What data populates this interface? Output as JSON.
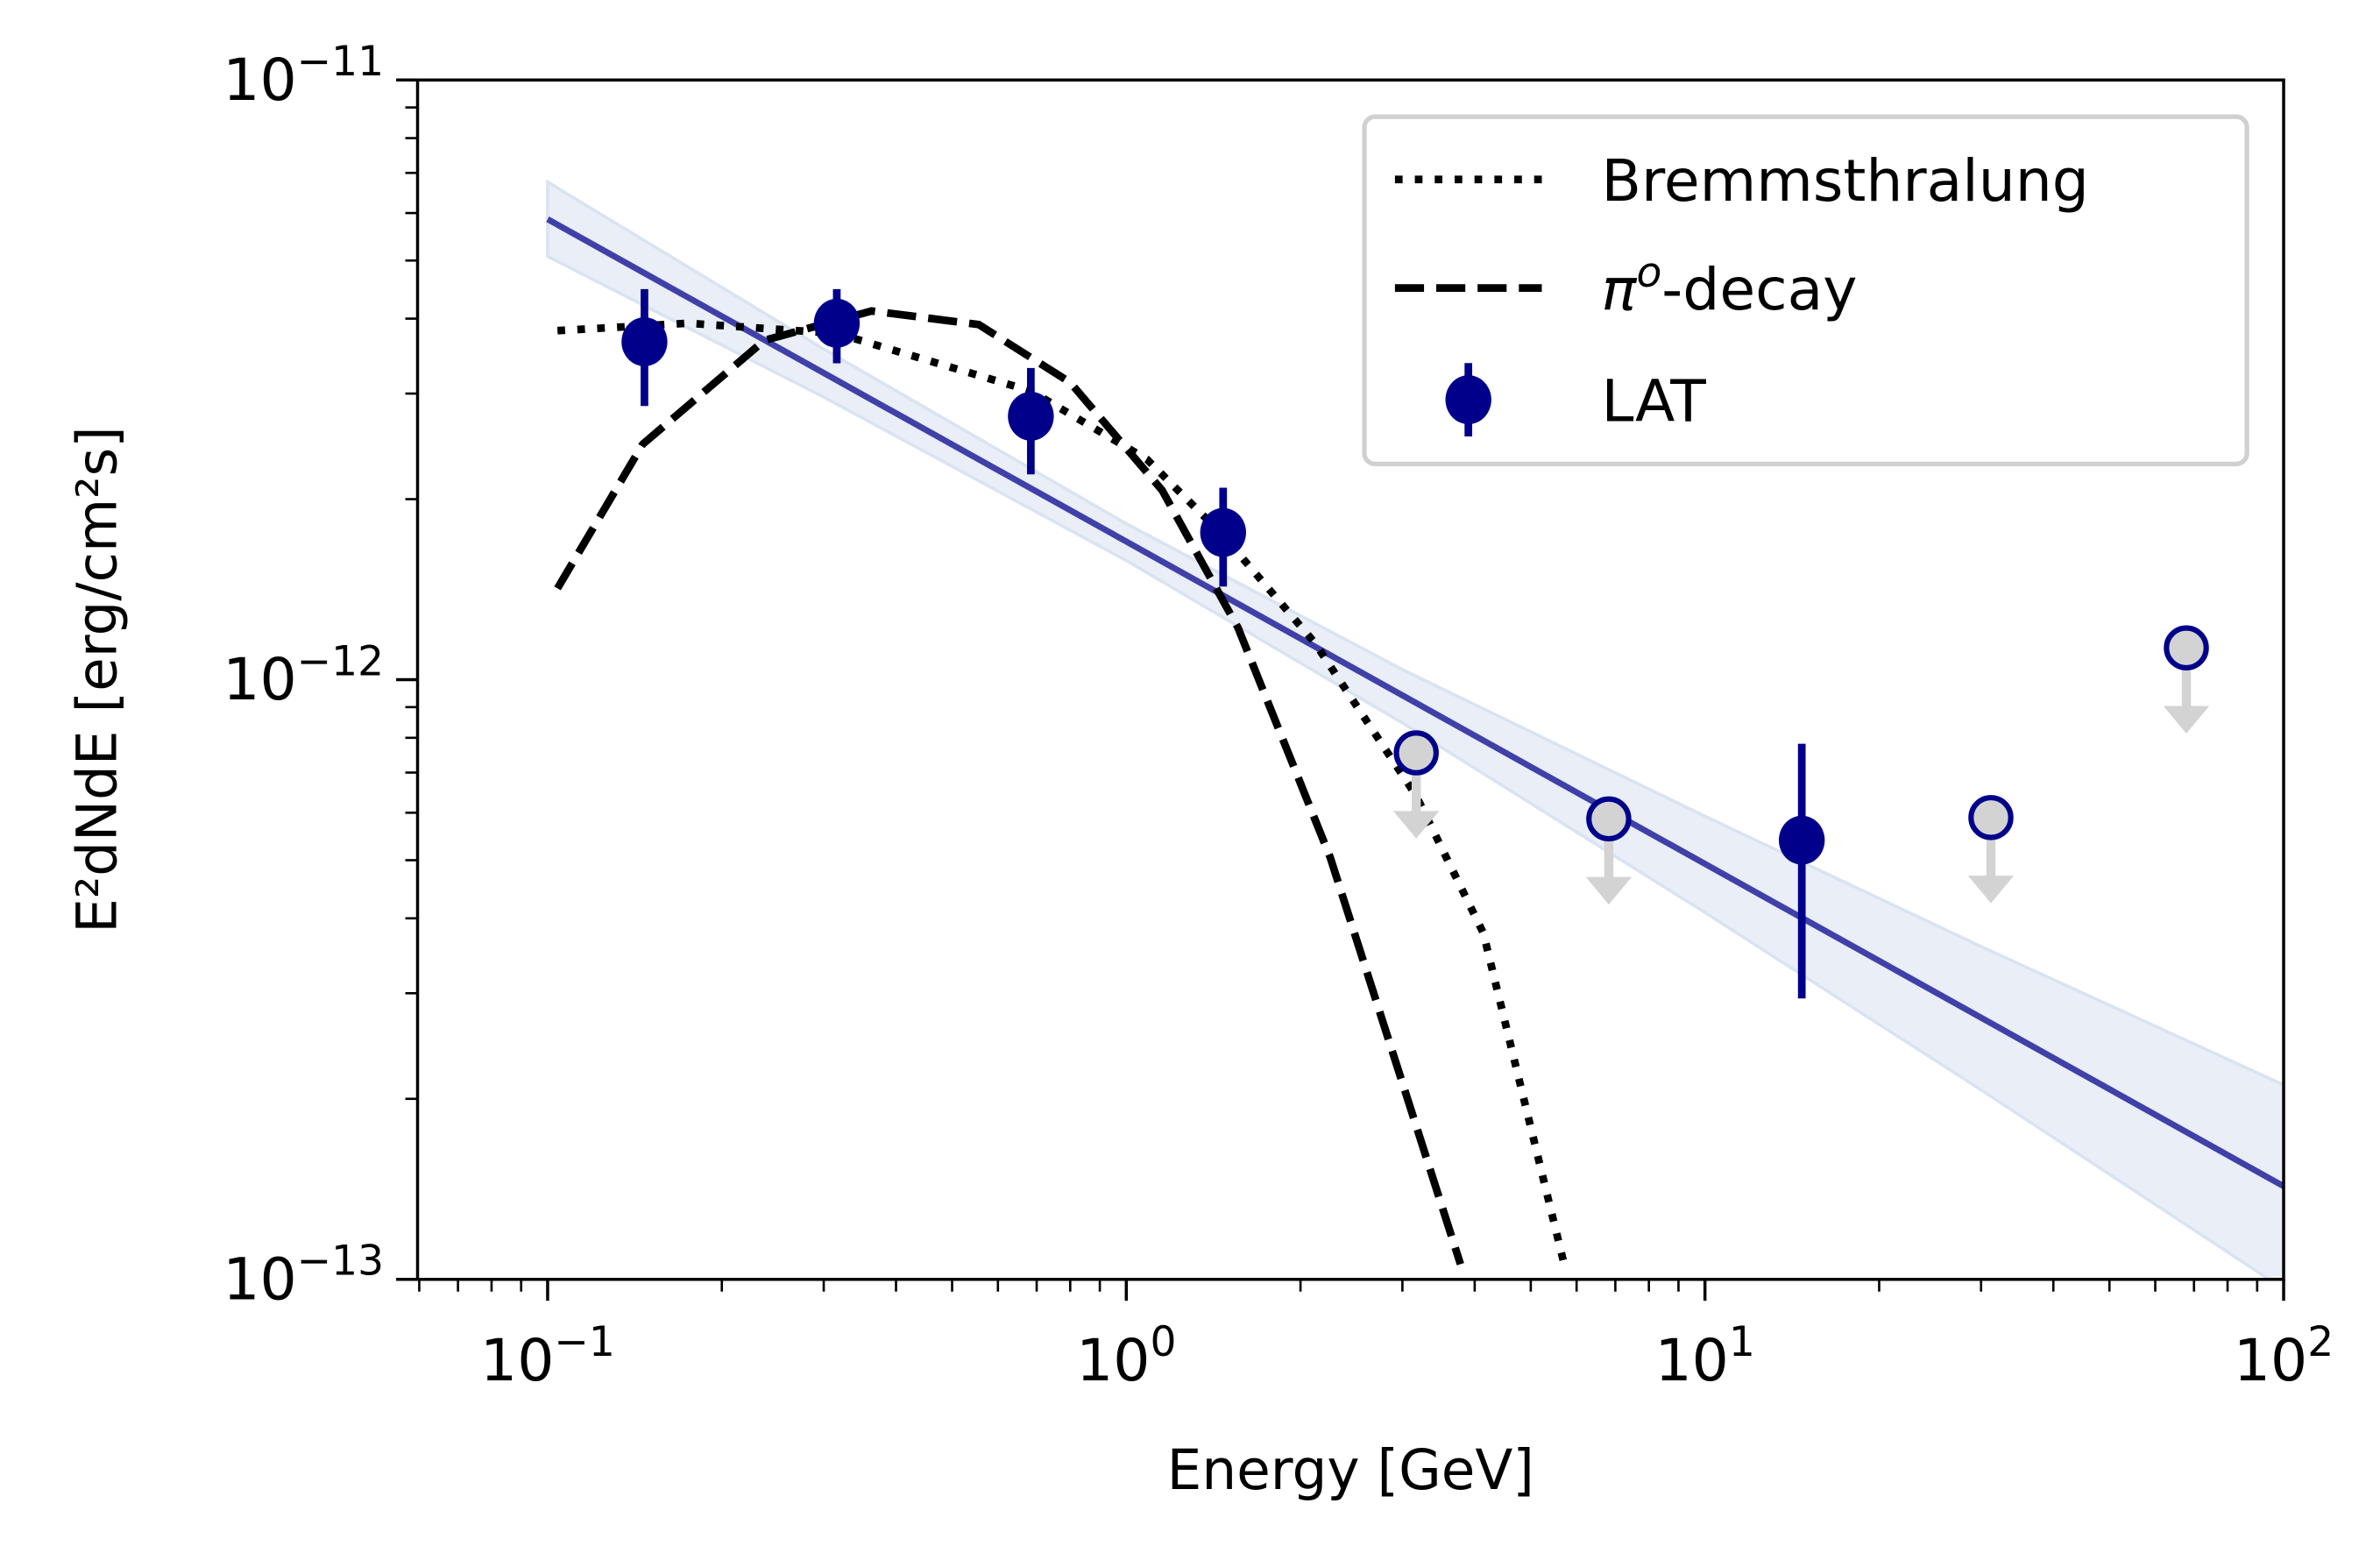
{
  "chart_data": {
    "type": "scatter",
    "xlabel": "Energy [GeV]",
    "ylabel": "E²dNdE [erg/cm²s]",
    "xscale": "log",
    "yscale": "log",
    "xlim": [
      0.0596,
      100
    ],
    "ylim": [
      1e-13,
      1e-11
    ],
    "grid": false,
    "legend_placement": "top-right",
    "x_ticks": [
      {
        "base": "10",
        "exp": "−1",
        "value": 0.1
      },
      {
        "base": "10",
        "exp": "0",
        "value": 1
      },
      {
        "base": "10",
        "exp": "1",
        "value": 10
      },
      {
        "base": "10",
        "exp": "2",
        "value": 100
      }
    ],
    "y_ticks": [
      {
        "base": "10",
        "exp": "−13",
        "value": 1e-13
      },
      {
        "base": "10",
        "exp": "−12",
        "value": 1e-12
      },
      {
        "base": "10",
        "exp": "−11",
        "value": 1e-11
      }
    ],
    "colors": {
      "lat": "#00008b",
      "fit_line": "#4040a8",
      "band_fill": "#e9eef7",
      "band_edge": "#d9e3f1",
      "upper_limit": "#d3d3d3",
      "model": "#000000"
    },
    "series": [
      {
        "name": "Bremmsthralung",
        "style": "dotted",
        "x": [
          0.104,
          0.175,
          0.316,
          0.684,
          1.086,
          1.47,
          2.12,
          3.17,
          4.14,
          5.71
        ],
        "y": [
          3.82e-12,
          3.93e-12,
          3.78e-12,
          3.03e-12,
          2.33e-12,
          1.74e-12,
          1.15e-12,
          6.4e-13,
          3.78e-13,
          1.06e-13
        ]
      },
      {
        "name": "π",
        "name_sup": "o",
        "name_suffix": "-decay",
        "style": "dashed",
        "x": [
          0.104,
          0.146,
          0.237,
          0.363,
          0.556,
          0.8,
          1.153,
          1.56,
          2.25,
          3.78
        ],
        "y": [
          1.42e-12,
          2.47e-12,
          3.68e-12,
          4.12e-12,
          3.91e-12,
          3.13e-12,
          2.07e-12,
          1.22e-12,
          5.06e-13,
          1.06e-13
        ]
      },
      {
        "name": "LAT",
        "style": "errorbar",
        "x": [
          0.147,
          0.316,
          0.684,
          1.47,
          14.7
        ],
        "y": [
          3.66e-12,
          3.93e-12,
          2.75e-12,
          1.76e-12,
          5.4e-13
        ],
        "y_hi": [
          4.48e-12,
          4.48e-12,
          3.31e-12,
          2.09e-12,
          7.82e-13
        ],
        "y_lo": [
          2.86e-12,
          3.37e-12,
          2.2e-12,
          1.43e-12,
          2.94e-13
        ]
      }
    ],
    "upper_limits": {
      "x": [
        3.17,
        6.82,
        31.2,
        67.9
      ],
      "y": [
        7.55e-13,
        5.86e-13,
        5.89e-13,
        1.13e-12
      ]
    },
    "power_law_fit": {
      "x": [
        0.1,
        100
      ],
      "y": [
        5.86e-12,
        1.43e-13
      ]
    },
    "fit_band": {
      "x": [
        0.1,
        0.3,
        1,
        3,
        10,
        30,
        100
      ],
      "upper": [
        6.76e-12,
        3.56e-12,
        1.82e-12,
        1.04e-12,
        5.92e-13,
        3.59e-13,
        2.11e-13
      ],
      "lower": [
        5.08e-12,
        2.96e-12,
        1.58e-12,
        8.47e-13,
        4.09e-13,
        2.07e-13,
        9.64e-14
      ]
    }
  }
}
